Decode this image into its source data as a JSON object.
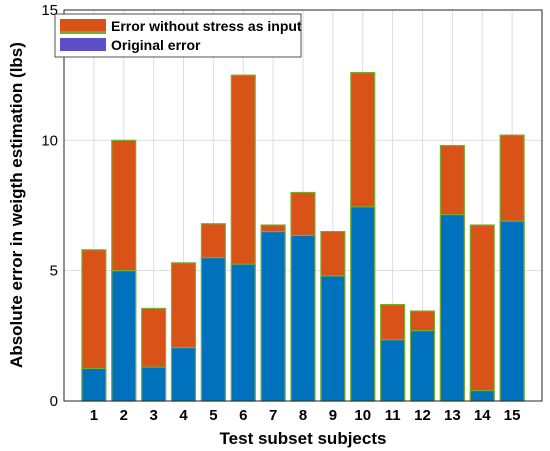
{
  "chart_data": {
    "type": "bar",
    "stacked": "overlay",
    "categories": [
      "1",
      "2",
      "3",
      "4",
      "5",
      "6",
      "7",
      "8",
      "9",
      "10",
      "11",
      "12",
      "13",
      "14",
      "15"
    ],
    "series": [
      {
        "name": "Error without stress as input",
        "color": "#d95319",
        "values": [
          5.8,
          10.0,
          3.55,
          5.3,
          6.8,
          12.5,
          6.75,
          8.0,
          6.5,
          12.6,
          3.7,
          3.45,
          9.8,
          6.75,
          10.2
        ]
      },
      {
        "name": "Original error",
        "color": "#0072bd",
        "values": [
          1.25,
          5.0,
          1.3,
          2.05,
          5.5,
          5.25,
          6.5,
          6.35,
          4.8,
          7.45,
          2.35,
          2.7,
          7.15,
          0.4,
          6.9
        ]
      }
    ],
    "edge_color": "#77ac30",
    "legend_swatch_colors": [
      "#77ac30",
      "#5d4fc7"
    ],
    "xlabel": "Test subset subjects",
    "ylabel": "Absolute error in weigth estimation (lbs)",
    "yticks": [
      0,
      5,
      10,
      15
    ],
    "ylim": [
      0,
      15
    ],
    "grid": true,
    "legend": "top-left"
  }
}
